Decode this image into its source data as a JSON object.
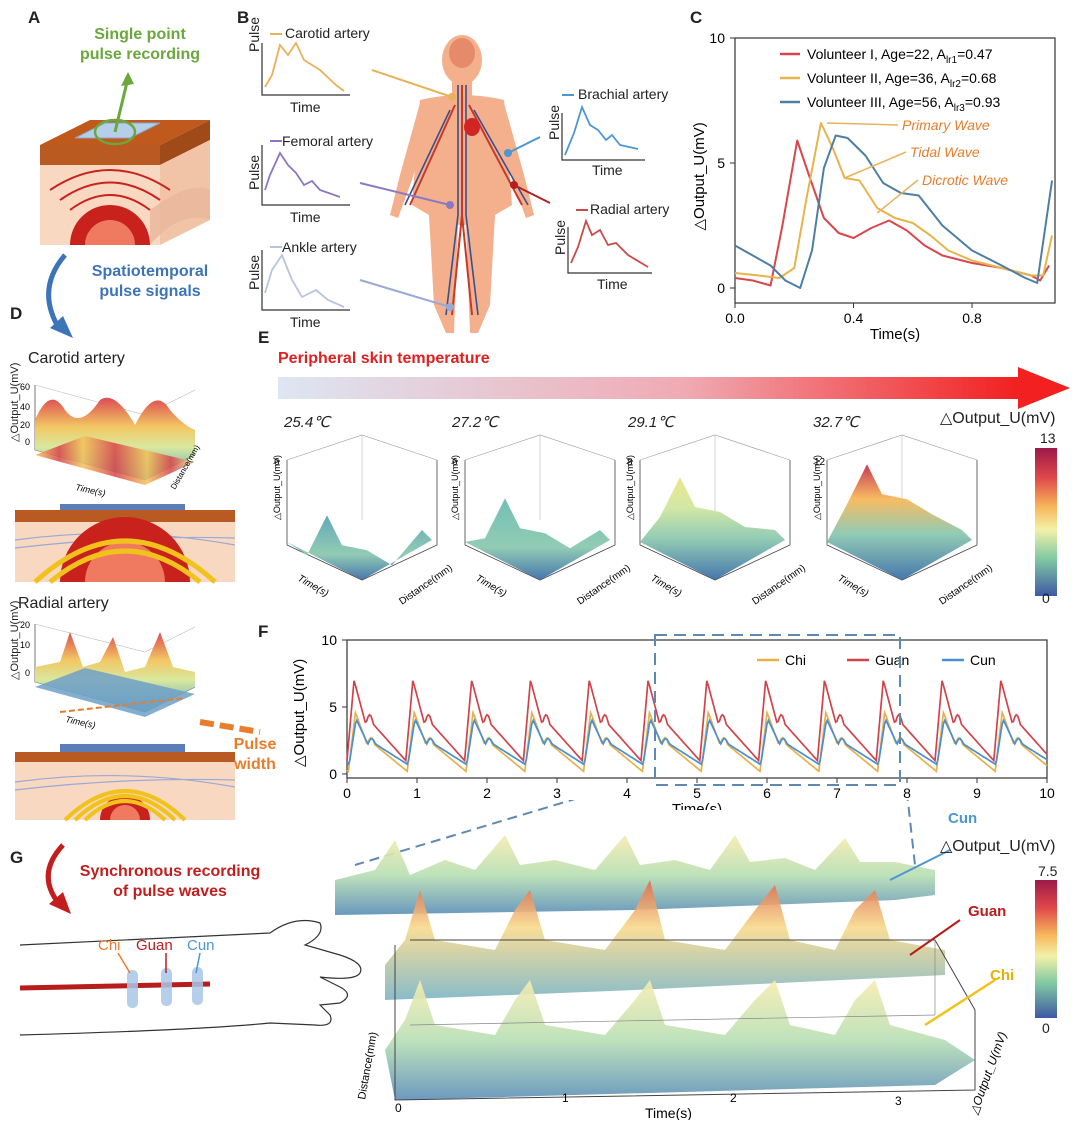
{
  "panel_labels": {
    "A": "A",
    "B": "B",
    "C": "C",
    "D": "D",
    "E": "E",
    "F": "F",
    "G": "G"
  },
  "panelA": {
    "title_line1": "Single point",
    "title_line2": "pulse recording",
    "arrow_line1": "Spatiotemporal",
    "arrow_line2": "pulse signals"
  },
  "panelB": {
    "pulse_axis": "Pulse",
    "time_axis": "Time",
    "arteries": [
      {
        "name": "Carotid artery",
        "color": "#e8b25a"
      },
      {
        "name": "Femoral artery",
        "color": "#8b78c4"
      },
      {
        "name": "Ankle artery",
        "color": "#b8c3e0"
      },
      {
        "name": "Brachial artery",
        "color": "#4c97d2"
      },
      {
        "name": "Radial artery",
        "color": "#c94a4a"
      }
    ]
  },
  "panelD": {
    "carotid": "Carotid artery",
    "radial": "Radial artery",
    "pulse_width_line1": "Pulse",
    "pulse_width_line2": "width",
    "z1": "△Output_U(mV)",
    "time": "Time(s)",
    "distance": "Distance(mm)"
  },
  "panelE": {
    "title": "Peripheral skin temperature",
    "colorbar_label": "△Output_U(mV)",
    "colorbar_max": "13",
    "colorbar_min": "0",
    "temps": [
      {
        "label": "25.4℃",
        "color": "#5d8fc8"
      },
      {
        "label": "27.2℃",
        "color": "#8a8fc4"
      },
      {
        "label": "29.1℃",
        "color": "#e8902e"
      },
      {
        "label": "32.7℃",
        "color": "#c33b1c"
      }
    ],
    "zmax": [
      "6",
      "6",
      "8",
      "12"
    ],
    "zaxis": "△Output_U(mV)",
    "xaxis": "Time(s)",
    "yaxis": "Distance(mm)"
  },
  "panelG": {
    "title_line1": "Synchronous recording",
    "title_line2": "of pulse waves",
    "chi": "Chi",
    "guan": "Guan",
    "cun": "Cun",
    "colorbar_label": "△Output_U(mV)",
    "colorbar_max": "7.5",
    "colorbar_min": "0",
    "xaxis": "Time(s)",
    "yaxis": "Distance(mm)",
    "zaxis": "△Output_U(mV)",
    "xticks": [
      "0",
      "1",
      "2",
      "3"
    ]
  },
  "chart_data": [
    {
      "id": "C",
      "type": "line",
      "xlabel": "Time(s)",
      "ylabel": "△Output_U(mV)",
      "xlim": [
        0,
        1.08
      ],
      "ylim": [
        -0.6,
        10
      ],
      "xticks": [
        "0.0",
        "0.4",
        "0.8"
      ],
      "yticks": [
        "0",
        "5",
        "10"
      ],
      "series": [
        {
          "name": "Volunteer I, Age=22, A",
          "sub": "lr1",
          "suffix": "=0.47",
          "color": "#d9464b",
          "x": [
            0,
            0.06,
            0.12,
            0.16,
            0.21,
            0.25,
            0.3,
            0.35,
            0.4,
            0.46,
            0.52,
            0.58,
            0.64,
            0.7,
            0.8,
            0.9,
            1.0,
            1.03,
            1.06
          ],
          "y": [
            0.4,
            0.3,
            0.1,
            2.5,
            5.9,
            4.5,
            2.8,
            2.2,
            2.0,
            2.4,
            2.7,
            2.3,
            1.7,
            1.3,
            1.0,
            0.8,
            0.5,
            0.3,
            0.9
          ]
        },
        {
          "name": "Volunteer II, Age=36, A",
          "sub": "lr2",
          "suffix": "=0.68",
          "color": "#e6b44c",
          "x": [
            0,
            0.08,
            0.15,
            0.2,
            0.24,
            0.29,
            0.33,
            0.37,
            0.42,
            0.48,
            0.54,
            0.6,
            0.66,
            0.72,
            0.8,
            0.9,
            1.0,
            1.04,
            1.07
          ],
          "y": [
            0.6,
            0.5,
            0.4,
            0.8,
            3.5,
            6.6,
            5.6,
            4.4,
            4.3,
            3.2,
            2.8,
            2.6,
            2.1,
            1.5,
            1.1,
            0.8,
            0.5,
            0.5,
            2.1
          ]
        },
        {
          "name": "Volunteer III, Age=56, A",
          "sub": "lr3",
          "suffix": "=0.93",
          "color": "#4f7ea3",
          "x": [
            0,
            0.06,
            0.12,
            0.17,
            0.22,
            0.26,
            0.3,
            0.34,
            0.38,
            0.44,
            0.5,
            0.56,
            0.62,
            0.7,
            0.8,
            0.9,
            0.98,
            1.02,
            1.07
          ],
          "y": [
            1.7,
            1.3,
            0.9,
            0.3,
            0.0,
            1.5,
            4.8,
            6.1,
            6.0,
            5.3,
            4.2,
            3.8,
            3.7,
            2.5,
            1.5,
            0.9,
            0.4,
            0.2,
            4.3
          ]
        }
      ],
      "annotations": [
        "Primary Wave",
        "Tidal Wave",
        "Dicrotic Wave"
      ]
    },
    {
      "id": "F",
      "type": "line",
      "xlabel": "Time(s)",
      "ylabel": "△Output_U(mV)",
      "xlim": [
        0,
        10
      ],
      "ylim": [
        -0.3,
        10
      ],
      "xticks": [
        "0",
        "1",
        "2",
        "3",
        "4",
        "5",
        "6",
        "7",
        "8",
        "9",
        "10"
      ],
      "yticks": [
        "0",
        "5",
        "10"
      ],
      "beat_period_s": 0.84,
      "series": [
        {
          "name": "Chi",
          "color": "#e6b04c",
          "peak_mV": 4.6,
          "trough_mV": 0.2
        },
        {
          "name": "Guan",
          "color": "#d1434b",
          "peak_mV": 7.0,
          "trough_mV": 1.0
        },
        {
          "name": "Cun",
          "color": "#4a8fcf",
          "peak_mV": 4.1,
          "trough_mV": 0.7
        }
      ]
    }
  ]
}
